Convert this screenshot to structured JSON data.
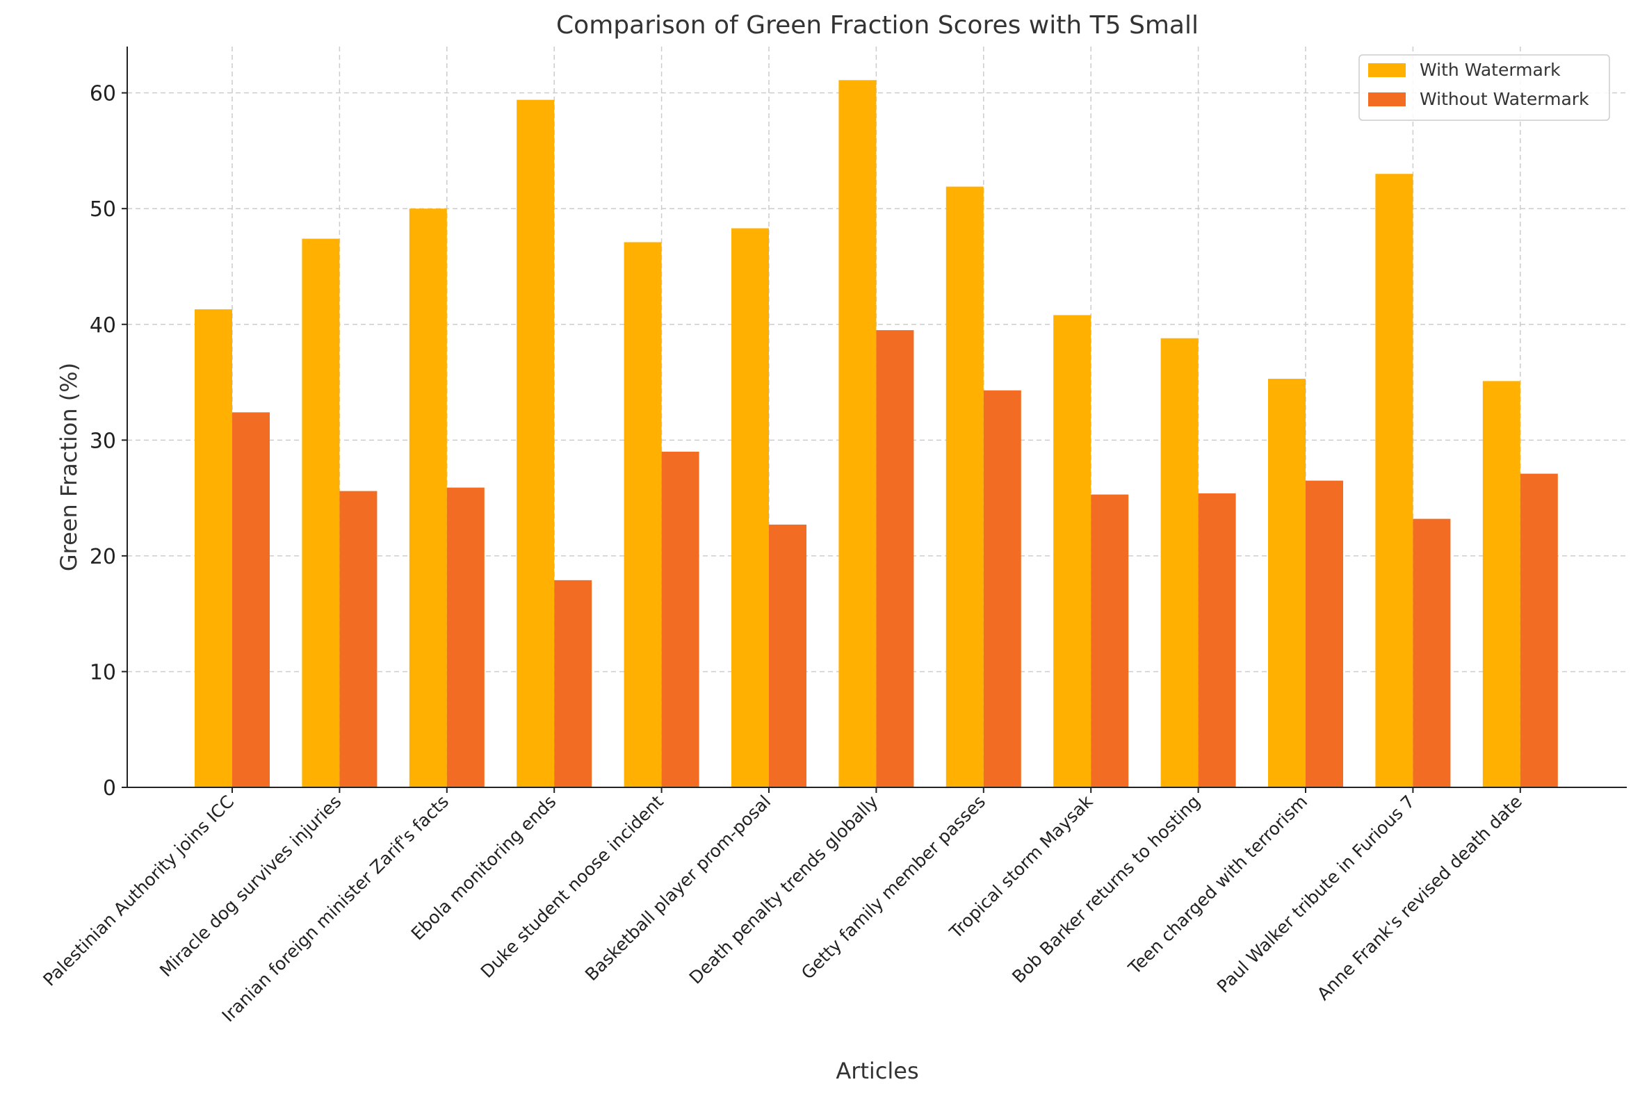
{
  "chart_data": {
    "type": "bar",
    "title": "Comparison of Green Fraction Scores with T5 Small",
    "xlabel": "Articles",
    "ylabel": "Green Fraction (%)",
    "ylim": [
      0,
      64
    ],
    "yticks": [
      0,
      10,
      20,
      30,
      40,
      50,
      60
    ],
    "grid": true,
    "legend_position": "top-right",
    "categories": [
      "Palestinian Authority joins ICC",
      "Miracle dog survives injuries",
      "Iranian foreign minister Zarif's facts",
      "Ebola monitoring ends",
      "Duke student noose incident",
      "Basketball player prom-posal",
      "Death penalty trends globally",
      "Getty family member passes",
      "Tropical storm Maysak",
      "Bob Barker returns to hosting",
      "Teen charged with terrorism",
      "Paul Walker tribute in Furious 7",
      "Anne Frank's revised death date"
    ],
    "series": [
      {
        "name": "With Watermark",
        "color": "#FFB000",
        "values": [
          41.3,
          47.4,
          50.0,
          59.4,
          47.1,
          48.3,
          61.1,
          51.9,
          40.8,
          38.8,
          35.3,
          53.0,
          35.1
        ]
      },
      {
        "name": "Without Watermark",
        "color": "#F36C23",
        "values": [
          32.4,
          25.6,
          25.9,
          17.9,
          29.0,
          22.7,
          39.5,
          34.3,
          25.3,
          25.4,
          26.5,
          23.2,
          27.1
        ]
      }
    ]
  }
}
